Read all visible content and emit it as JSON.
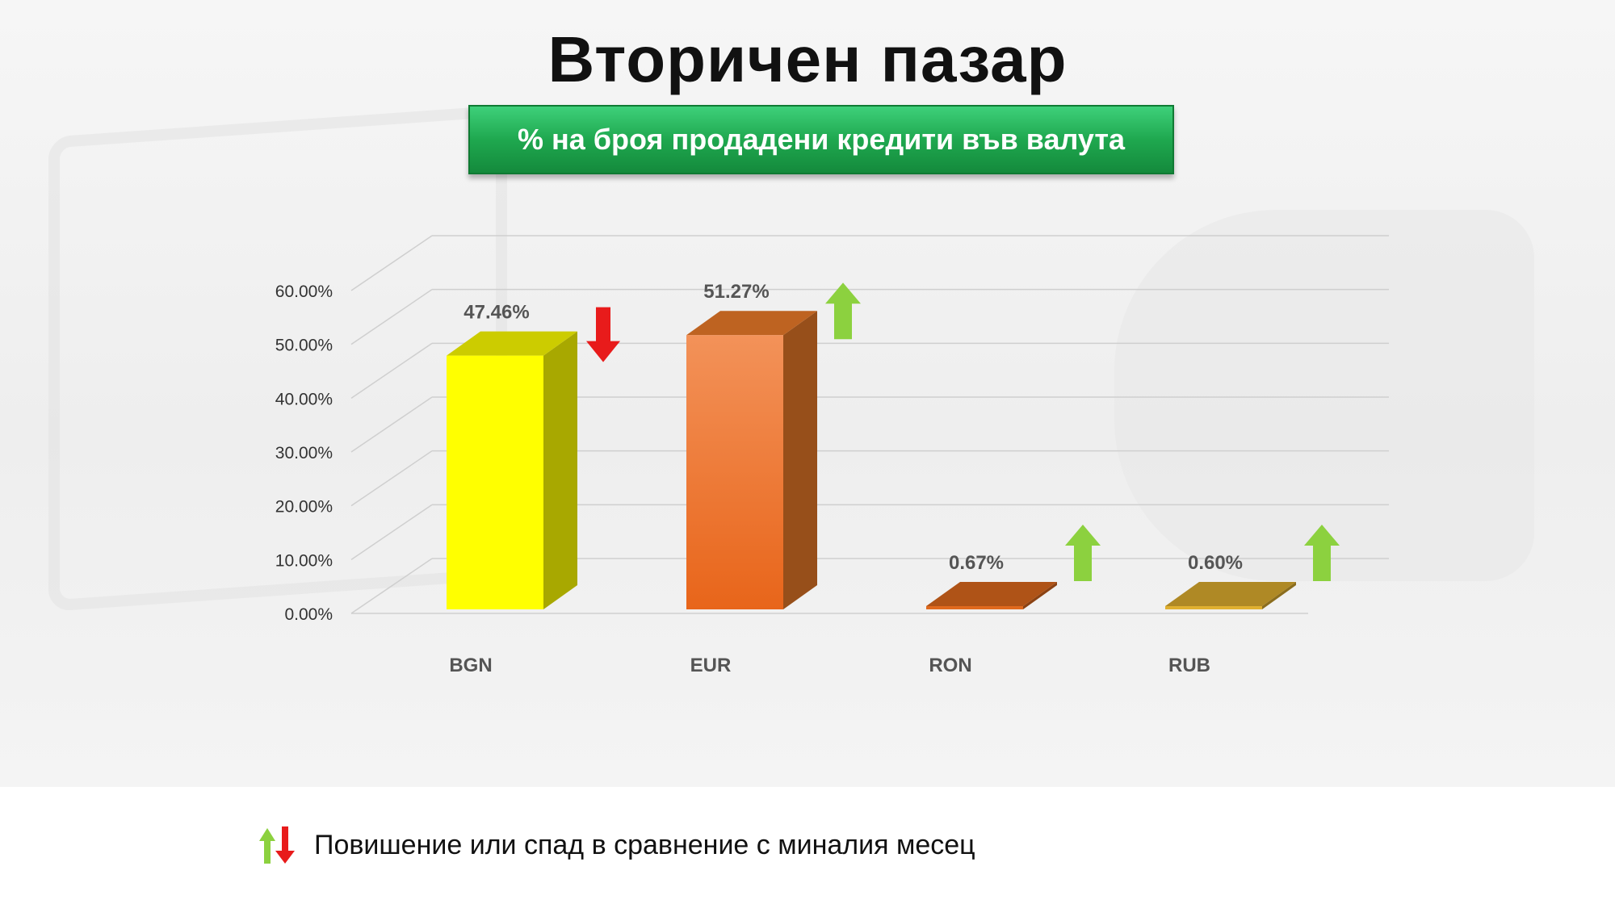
{
  "title": "Вторичен пазар",
  "subtitle": "% на броя продадени кредити във валута",
  "legend_text": "Повишение или спад в сравнение с миналия месец",
  "colors": {
    "up_arrow": "#8cd13f",
    "down_arrow": "#e81b1b",
    "banner": "#1fa84f"
  },
  "chart_data": {
    "type": "bar",
    "title": "",
    "xlabel": "",
    "ylabel": "",
    "ylim": [
      0,
      0.6
    ],
    "y_ticks": [
      "0.00%",
      "10.00%",
      "20.00%",
      "30.00%",
      "40.00%",
      "50.00%",
      "60.00%"
    ],
    "categories": [
      "BGN",
      "EUR",
      "RON",
      "RUB"
    ],
    "values": [
      0.4746,
      0.5127,
      0.0067,
      0.006
    ],
    "data_labels": [
      "47.46%",
      "51.27%",
      "0.67%",
      "0.60%"
    ],
    "trend": [
      "down",
      "up",
      "up",
      "up"
    ],
    "bar_colors": [
      "#ffff00",
      "#f47f2a",
      "#e06a1e",
      "#e0b030"
    ],
    "grid": true
  }
}
